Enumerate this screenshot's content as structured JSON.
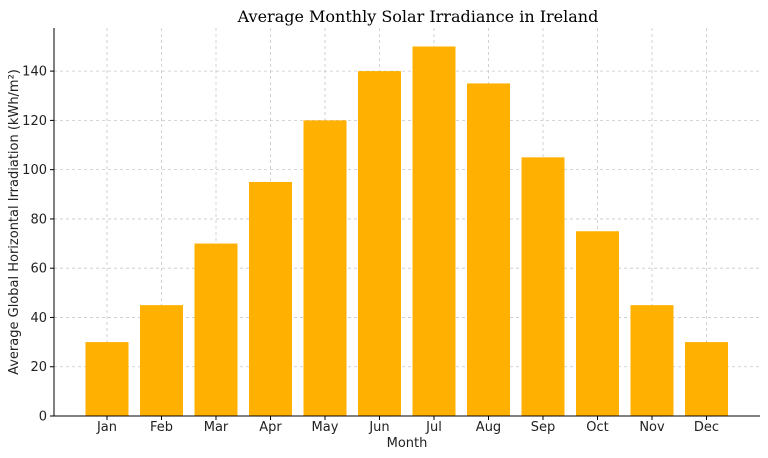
{
  "chart_data": {
    "type": "bar",
    "title": "Average Monthly Solar Irradiance in Ireland",
    "xlabel": "Month",
    "ylabel": "Average Global Horizontal Irradiation (kWh/m²)",
    "categories": [
      "Jan",
      "Feb",
      "Mar",
      "Apr",
      "May",
      "Jun",
      "Jul",
      "Aug",
      "Sep",
      "Oct",
      "Nov",
      "Dec"
    ],
    "values": [
      30,
      45,
      70,
      95,
      120,
      140,
      150,
      135,
      105,
      75,
      45,
      30
    ],
    "ylim": [
      0,
      157.5
    ],
    "yticks": [
      0,
      20,
      40,
      60,
      80,
      100,
      120,
      140
    ],
    "grid": true,
    "bar_color": "#FFB000"
  }
}
